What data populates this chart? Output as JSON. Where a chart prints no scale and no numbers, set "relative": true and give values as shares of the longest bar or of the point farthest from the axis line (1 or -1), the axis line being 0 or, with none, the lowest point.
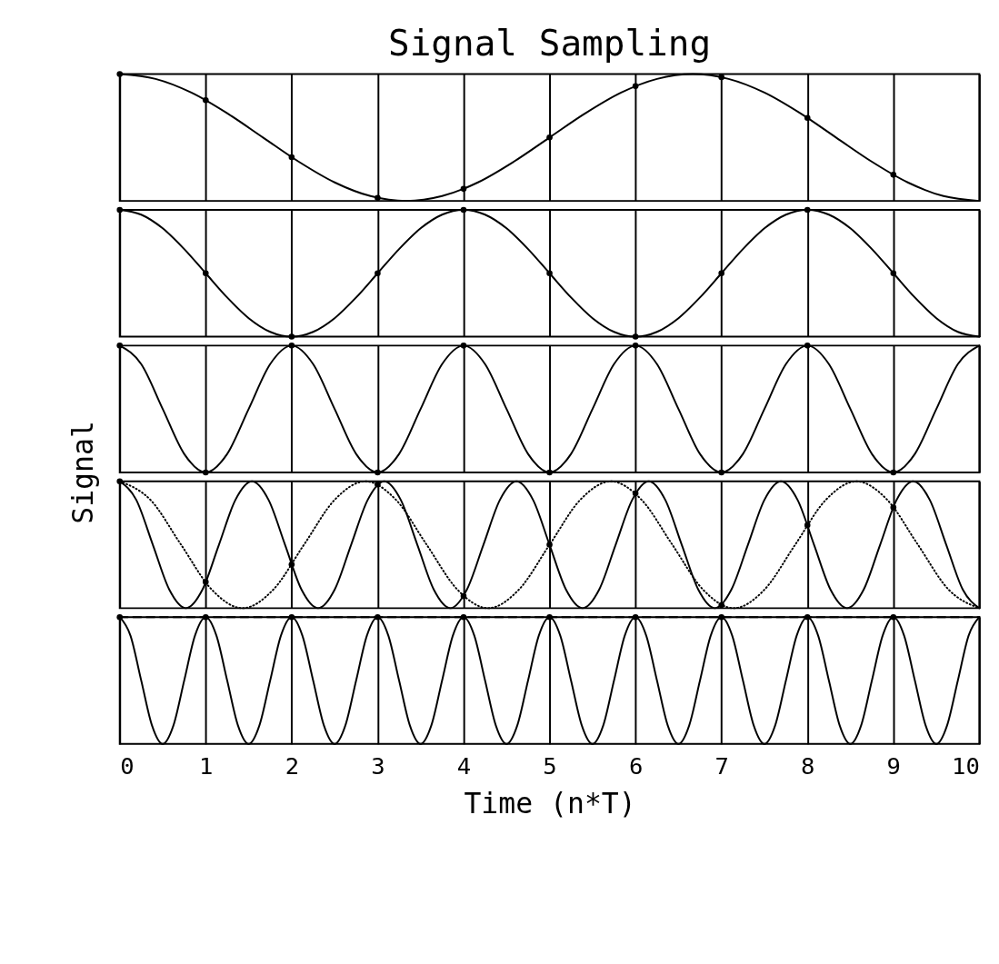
{
  "chart_data": [
    {
      "type": "line",
      "title": "Signal Sampling",
      "relative": true,
      "xlim": [
        0,
        10
      ],
      "xticks": [
        0,
        1,
        2,
        3,
        4,
        5,
        6,
        7,
        8,
        9,
        10
      ],
      "tick_labels": false,
      "grid": "x",
      "series": [
        {
          "color": "#000000",
          "line_style": "solid",
          "x": [
            0,
            0.417,
            0.833,
            1.25,
            1.667,
            2.083,
            2.5,
            2.917,
            3.333,
            3.75,
            4.167,
            4.583,
            5,
            5.417,
            5.833,
            6.25,
            6.667,
            7.083,
            7.5,
            7.917,
            8.333,
            8.75,
            9.167,
            9.583,
            10
          ],
          "values": [
            1,
            0.962,
            0.854,
            0.691,
            0.5,
            0.309,
            0.146,
            0.038,
            0,
            0.038,
            0.146,
            0.309,
            0.5,
            0.691,
            0.854,
            0.962,
            1,
            0.962,
            0.854,
            0.691,
            0.5,
            0.309,
            0.146,
            0.038,
            0
          ]
        },
        {
          "type": "scatter",
          "color": "#000000",
          "marker": "circle",
          "x": [
            0,
            1,
            2,
            3,
            4,
            5,
            6,
            7,
            8,
            9
          ],
          "values": [
            1,
            0.794,
            0.345,
            0.024,
            0.095,
            0.5,
            0.905,
            0.976,
            0.655,
            0.206
          ]
        }
      ]
    },
    {
      "type": "line",
      "relative": true,
      "xlim": [
        0,
        10
      ],
      "xticks": [
        0,
        1,
        2,
        3,
        4,
        5,
        6,
        7,
        8,
        9,
        10
      ],
      "tick_labels": false,
      "grid": "x",
      "series": [
        {
          "color": "#000000",
          "line_style": "solid",
          "x": [
            0,
            0.25,
            0.5,
            0.75,
            1,
            1.25,
            1.5,
            1.75,
            2,
            2.25,
            2.5,
            2.75,
            3,
            3.25,
            3.5,
            3.75,
            4,
            4.25,
            4.5,
            4.75,
            5,
            5.25,
            5.5,
            5.75,
            6,
            6.25,
            6.5,
            6.75,
            7,
            7.25,
            7.5,
            7.75,
            8,
            8.25,
            8.5,
            8.75,
            9,
            9.25,
            9.5,
            9.75,
            10
          ],
          "values": [
            1,
            0.962,
            0.854,
            0.691,
            0.5,
            0.309,
            0.146,
            0.038,
            0,
            0.038,
            0.146,
            0.309,
            0.5,
            0.691,
            0.854,
            0.962,
            1,
            0.962,
            0.854,
            0.691,
            0.5,
            0.309,
            0.146,
            0.038,
            0,
            0.038,
            0.146,
            0.309,
            0.5,
            0.691,
            0.854,
            0.962,
            1,
            0.962,
            0.854,
            0.691,
            0.5,
            0.309,
            0.146,
            0.038,
            0
          ]
        },
        {
          "type": "scatter",
          "color": "#000000",
          "marker": "circle",
          "x": [
            0,
            1,
            2,
            3,
            4,
            5,
            6,
            7,
            8,
            9
          ],
          "values": [
            1,
            0.5,
            0,
            0.5,
            1,
            0.5,
            0,
            0.5,
            1,
            0.5
          ]
        }
      ]
    },
    {
      "type": "line",
      "ylabel": "Signal",
      "relative": true,
      "xlim": [
        0,
        10
      ],
      "xticks": [
        0,
        1,
        2,
        3,
        4,
        5,
        6,
        7,
        8,
        9,
        10
      ],
      "tick_labels": false,
      "grid": "x",
      "series": [
        {
          "color": "#000000",
          "line_style": "solid",
          "x": [
            0,
            0.25,
            0.5,
            0.75,
            1,
            1.25,
            1.5,
            1.75,
            2,
            2.25,
            2.5,
            2.75,
            3,
            3.25,
            3.5,
            3.75,
            4,
            4.25,
            4.5,
            4.75,
            5,
            5.25,
            5.5,
            5.75,
            6,
            6.25,
            6.5,
            6.75,
            7,
            7.25,
            7.5,
            7.75,
            8,
            8.25,
            8.5,
            8.75,
            9,
            9.25,
            9.5,
            9.75,
            10
          ],
          "values": [
            1,
            0.854,
            0.5,
            0.146,
            0,
            0.146,
            0.5,
            0.854,
            1,
            0.854,
            0.5,
            0.146,
            0,
            0.146,
            0.5,
            0.854,
            1,
            0.854,
            0.5,
            0.146,
            0,
            0.146,
            0.5,
            0.854,
            1,
            0.854,
            0.5,
            0.146,
            0,
            0.146,
            0.5,
            0.854,
            1,
            0.854,
            0.5,
            0.146,
            0,
            0.146,
            0.5,
            0.854,
            1
          ]
        },
        {
          "type": "scatter",
          "color": "#000000",
          "marker": "circle",
          "x": [
            0,
            1,
            2,
            3,
            4,
            5,
            6,
            7,
            8,
            9
          ],
          "values": [
            1,
            0,
            1,
            0,
            1,
            0,
            1,
            0,
            1,
            0
          ]
        }
      ]
    },
    {
      "type": "line",
      "relative": true,
      "xlim": [
        0,
        10
      ],
      "xticks": [
        0,
        1,
        2,
        3,
        4,
        5,
        6,
        7,
        8,
        9,
        10
      ],
      "tick_labels": false,
      "grid": "x",
      "series": [
        {
          "color": "#000000",
          "line_style": "solid",
          "x": [
            0,
            0.192,
            0.385,
            0.577,
            0.769,
            0.962,
            1.154,
            1.346,
            1.538,
            1.731,
            1.923,
            2.115,
            2.308,
            2.5,
            2.692,
            2.885,
            3.077,
            3.269,
            3.462,
            3.654,
            3.846,
            4.038,
            4.231,
            4.423,
            4.615,
            4.808,
            5,
            5.192,
            5.385,
            5.577,
            5.769,
            5.962,
            6.154,
            6.346,
            6.538,
            6.731,
            6.923,
            7.115,
            7.308,
            7.5,
            7.692,
            7.885,
            8.077,
            8.269,
            8.462,
            8.654,
            8.846,
            9.038,
            9.231,
            9.423,
            9.615,
            9.808,
            10
          ],
          "values": [
            1,
            0.854,
            0.5,
            0.146,
            0,
            0.146,
            0.5,
            0.854,
            1,
            0.854,
            0.5,
            0.146,
            0,
            0.146,
            0.5,
            0.854,
            1,
            0.854,
            0.5,
            0.146,
            0,
            0.146,
            0.5,
            0.854,
            1,
            0.854,
            0.5,
            0.146,
            0,
            0.146,
            0.5,
            0.854,
            1,
            0.854,
            0.5,
            0.146,
            0,
            0.146,
            0.5,
            0.854,
            1,
            0.854,
            0.5,
            0.146,
            0,
            0.146,
            0.5,
            0.854,
            1,
            0.854,
            0.5,
            0.146,
            0
          ]
        },
        {
          "color": "#000000",
          "line_style": "dotted",
          "x": [
            0,
            0.357,
            0.714,
            1.071,
            1.429,
            1.786,
            2.143,
            2.5,
            2.857,
            3.214,
            3.571,
            3.929,
            4.286,
            4.643,
            5,
            5.357,
            5.714,
            6.071,
            6.429,
            6.786,
            7.143,
            7.5,
            7.857,
            8.214,
            8.571,
            8.929,
            9.286,
            9.643,
            10
          ],
          "values": [
            1,
            0.854,
            0.5,
            0.146,
            0,
            0.146,
            0.5,
            0.854,
            1,
            0.854,
            0.5,
            0.146,
            0,
            0.146,
            0.5,
            0.854,
            1,
            0.854,
            0.5,
            0.146,
            0,
            0.146,
            0.5,
            0.854,
            1,
            0.854,
            0.5,
            0.146,
            0
          ]
        },
        {
          "type": "scatter",
          "color": "#000000",
          "marker": "circle",
          "x": [
            0,
            1,
            2,
            3,
            4,
            5,
            6,
            7,
            8,
            9
          ],
          "values": [
            1,
            0.206,
            0.345,
            0.976,
            0.095,
            0.5,
            0.905,
            0.024,
            0.655,
            0.794
          ]
        }
      ]
    },
    {
      "type": "line",
      "xlabel": "Time (n*T)",
      "relative": true,
      "xlim": [
        0,
        10
      ],
      "xticks": [
        0,
        1,
        2,
        3,
        4,
        5,
        6,
        7,
        8,
        9,
        10
      ],
      "tick_labels": "x",
      "grid": "x",
      "series": [
        {
          "color": "#000000",
          "line_style": "solid",
          "x": [
            0,
            0.125,
            0.25,
            0.375,
            0.5,
            0.625,
            0.75,
            0.875,
            1,
            1.125,
            1.25,
            1.375,
            1.5,
            1.625,
            1.75,
            1.875,
            2,
            2.125,
            2.25,
            2.375,
            2.5,
            2.625,
            2.75,
            2.875,
            3,
            3.125,
            3.25,
            3.375,
            3.5,
            3.625,
            3.75,
            3.875,
            4,
            4.125,
            4.25,
            4.375,
            4.5,
            4.625,
            4.75,
            4.875,
            5,
            5.125,
            5.25,
            5.375,
            5.5,
            5.625,
            5.75,
            5.875,
            6,
            6.125,
            6.25,
            6.375,
            6.5,
            6.625,
            6.75,
            6.875,
            7,
            7.125,
            7.25,
            7.375,
            7.5,
            7.625,
            7.75,
            7.875,
            8,
            8.125,
            8.25,
            8.375,
            8.5,
            8.625,
            8.75,
            8.875,
            9,
            9.125,
            9.25,
            9.375,
            9.5,
            9.625,
            9.75,
            9.875,
            10
          ],
          "values": [
            1,
            0.854,
            0.5,
            0.146,
            0,
            0.146,
            0.5,
            0.854,
            1,
            0.854,
            0.5,
            0.146,
            0,
            0.146,
            0.5,
            0.854,
            1,
            0.854,
            0.5,
            0.146,
            0,
            0.146,
            0.5,
            0.854,
            1,
            0.854,
            0.5,
            0.146,
            0,
            0.146,
            0.5,
            0.854,
            1,
            0.854,
            0.5,
            0.146,
            0,
            0.146,
            0.5,
            0.854,
            1,
            0.854,
            0.5,
            0.146,
            0,
            0.146,
            0.5,
            0.854,
            1,
            0.854,
            0.5,
            0.146,
            0,
            0.146,
            0.5,
            0.854,
            1,
            0.854,
            0.5,
            0.146,
            0,
            0.146,
            0.5,
            0.854,
            1,
            0.854,
            0.5,
            0.146,
            0,
            0.146,
            0.5,
            0.854,
            1,
            0.854,
            0.5,
            0.146,
            0,
            0.146,
            0.5,
            0.854,
            1
          ]
        },
        {
          "color": "#000000",
          "line_style": "dashed",
          "x": [
            0,
            10
          ],
          "values": [
            1,
            1
          ]
        },
        {
          "type": "scatter",
          "color": "#000000",
          "marker": "circle",
          "x": [
            0,
            1,
            2,
            3,
            4,
            5,
            6,
            7,
            8,
            9
          ],
          "values": [
            1,
            1,
            1,
            1,
            1,
            1,
            1,
            1,
            1,
            1
          ]
        }
      ]
    }
  ]
}
